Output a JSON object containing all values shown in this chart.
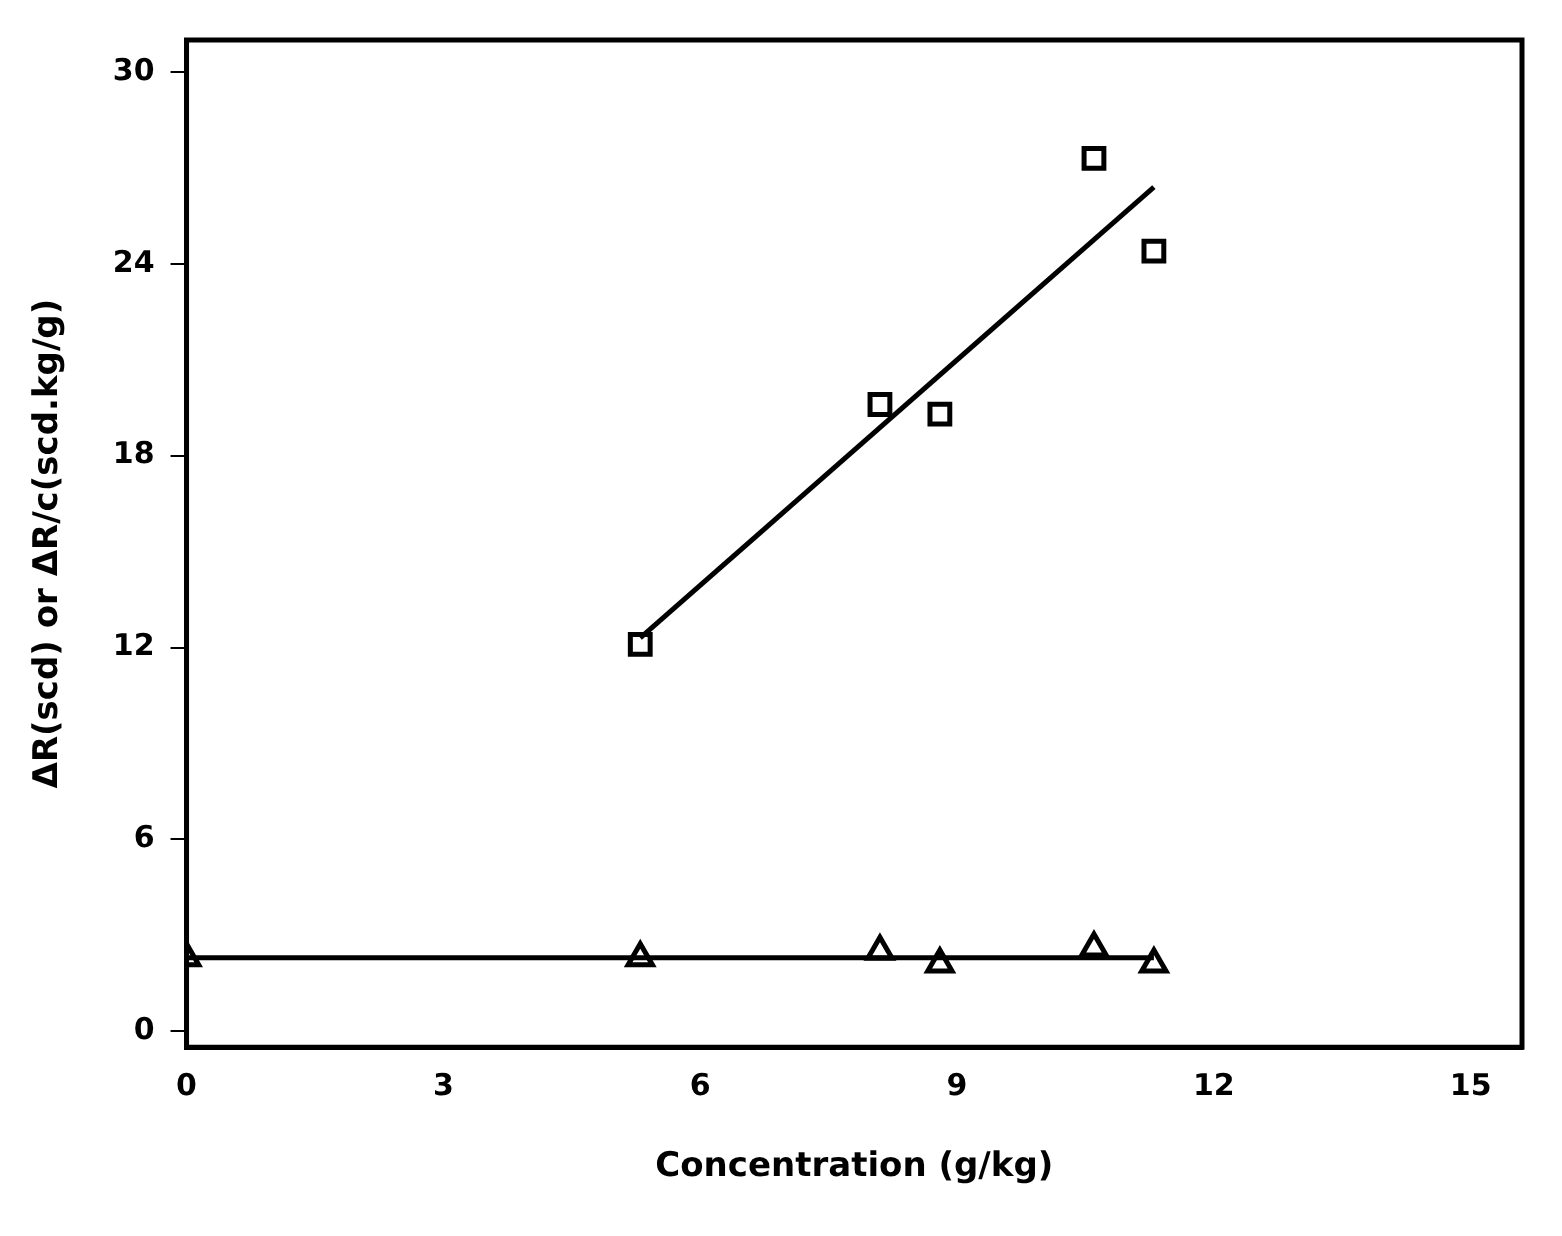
{
  "chart_data": {
    "type": "scatter",
    "xlabel": "Concentration (g/kg)",
    "ylabel": "ΔR(scd) or ΔR/c(scd.kg/g)",
    "xlim": [
      0,
      15.6
    ],
    "xticks": [
      0,
      3,
      6,
      9,
      12,
      15
    ],
    "ylim": [
      -0.5,
      31
    ],
    "yticks": [
      0,
      6,
      12,
      18,
      24,
      30
    ],
    "grid": false,
    "legend": false,
    "series": [
      {
        "marker": "square",
        "color": "#000000",
        "x": [
          5.3,
          8.1,
          8.8,
          10.6,
          11.3
        ],
        "values": [
          12.1,
          19.6,
          19.3,
          27.3,
          24.4
        ]
      },
      {
        "marker": "triangle",
        "color": "#000000",
        "x": [
          0,
          5.3,
          8.1,
          8.8,
          10.6,
          11.3
        ],
        "values": [
          2.3,
          2.3,
          2.5,
          2.1,
          2.6,
          2.1
        ]
      },
      {
        "type": "line",
        "marker": "none",
        "line_style": "solid",
        "color": "#000000",
        "x": [
          5.3,
          11.3
        ],
        "values": [
          12.3,
          26.4
        ]
      },
      {
        "type": "line",
        "marker": "none",
        "line_style": "solid",
        "color": "#000000",
        "x": [
          0,
          11.3
        ],
        "values": [
          2.3,
          2.3
        ]
      }
    ]
  }
}
